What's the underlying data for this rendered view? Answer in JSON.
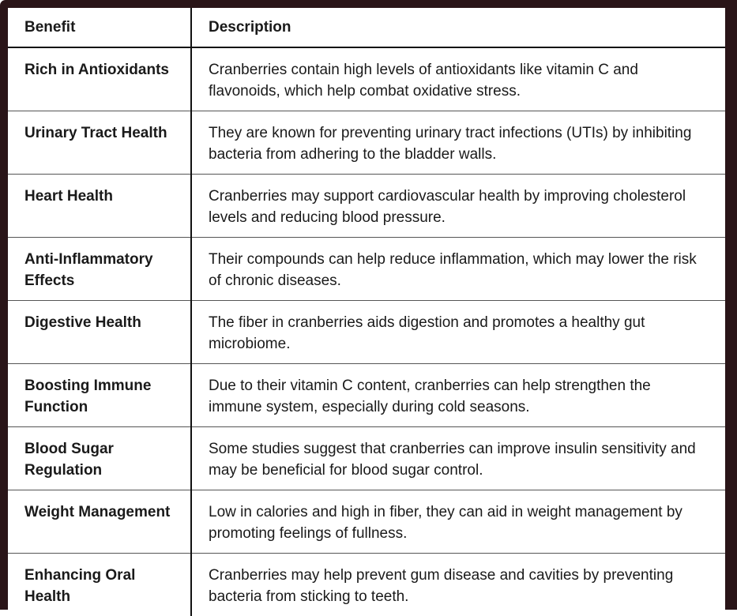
{
  "table": {
    "columns": {
      "benefit": "Benefit",
      "description": "Description"
    },
    "rows": [
      {
        "benefit": "Rich in Antioxidants",
        "description": "Cranberries contain high levels of antioxidants like vitamin C and flavonoids, which help combat oxidative stress."
      },
      {
        "benefit": "Urinary Tract Health",
        "description": "They are known for preventing urinary tract infections (UTIs) by inhibiting bacteria from adhering to the bladder walls."
      },
      {
        "benefit": "Heart Health",
        "description": "Cranberries may support cardiovascular health by improving cholesterol levels and reducing blood pressure."
      },
      {
        "benefit": "Anti-Inflammatory Effects",
        "description": "Their compounds can help reduce inflammation, which may lower the risk of chronic diseases."
      },
      {
        "benefit": "Digestive Health",
        "description": "The fiber in cranberries aids digestion and promotes a healthy gut microbiome."
      },
      {
        "benefit": "Boosting Immune Function",
        "description": "Due to their vitamin C content, cranberries can help strengthen the immune system, especially during cold seasons."
      },
      {
        "benefit": "Blood Sugar Regulation",
        "description": "Some studies suggest that cranberries can improve insulin sensitivity and may be beneficial for blood sugar control."
      },
      {
        "benefit": "Weight Management",
        "description": "Low in calories and high in fiber, they can aid in weight management by promoting feelings of fullness."
      },
      {
        "benefit": "Enhancing Oral Health",
        "description": "Cranberries may help prevent gum disease and cavities by preventing bacteria from sticking to teeth."
      }
    ],
    "colors": {
      "frame": "#2a1518",
      "grid_line": "#555555",
      "divider_line": "#111111",
      "text": "#1a1a1a",
      "background": "#ffffff"
    }
  }
}
